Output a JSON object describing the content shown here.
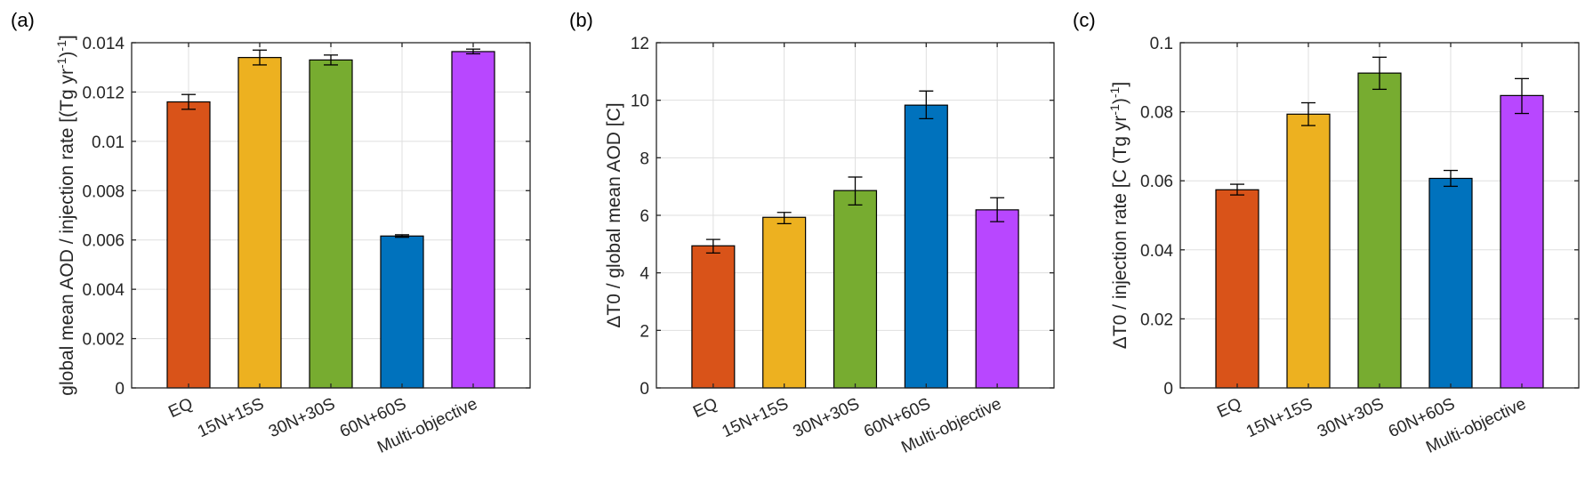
{
  "figure": {
    "panels": [
      "(a)",
      "(b)",
      "(c)"
    ]
  },
  "chart_data": [
    {
      "type": "bar",
      "panel_label": "(a)",
      "title": "",
      "xlabel": "",
      "ylabel_parts": [
        "global mean AOD / injection rate [(Tg yr",
        "-1",
        ")",
        "-1",
        "]"
      ],
      "categories": [
        "EQ",
        "15N+15S",
        "30N+30S",
        "60N+60S",
        "Multi-objective"
      ],
      "values": [
        0.0116,
        0.0134,
        0.0133,
        0.00616,
        0.01364
      ],
      "error_low": [
        0.0113,
        0.0131,
        0.0131,
        0.00611,
        0.01355
      ],
      "error_high": [
        0.0119,
        0.0137,
        0.0135,
        0.00621,
        0.01374
      ],
      "colors": [
        "#d95319",
        "#edb120",
        "#77ac30",
        "#0072bd",
        "#b847ff"
      ],
      "ylim": [
        0,
        0.014
      ],
      "yticks": [
        0,
        0.002,
        0.004,
        0.006,
        0.008,
        0.01,
        0.012,
        0.014
      ],
      "ytick_labels": [
        "0",
        "0.002",
        "0.004",
        "0.006",
        "0.008",
        "0.01",
        "0.012",
        "0.014"
      ],
      "grid": true,
      "legend": "none"
    },
    {
      "type": "bar",
      "panel_label": "(b)",
      "title": "",
      "xlabel": "",
      "ylabel_parts": [
        "ΔT0 / global mean AOD [C]"
      ],
      "categories": [
        "EQ",
        "15N+15S",
        "30N+30S",
        "60N+60S",
        "Multi-objective"
      ],
      "values": [
        4.94,
        5.93,
        6.86,
        9.83,
        6.19
      ],
      "error_low": [
        4.69,
        5.71,
        6.36,
        9.36,
        5.78
      ],
      "error_high": [
        5.16,
        6.1,
        7.33,
        10.32,
        6.61
      ],
      "colors": [
        "#d95319",
        "#edb120",
        "#77ac30",
        "#0072bd",
        "#b847ff"
      ],
      "ylim": [
        0,
        12
      ],
      "yticks": [
        0,
        2,
        4,
        6,
        8,
        10,
        12
      ],
      "ytick_labels": [
        "0",
        "2",
        "4",
        "6",
        "8",
        "10",
        "12"
      ],
      "grid": true,
      "legend": "none"
    },
    {
      "type": "bar",
      "panel_label": "(c)",
      "title": "",
      "xlabel": "",
      "ylabel_parts": [
        "ΔT0 / injection rate [C (Tg yr",
        "-1",
        ")",
        "-1",
        "]"
      ],
      "categories": [
        "EQ",
        "15N+15S",
        "30N+30S",
        "60N+60S",
        "Multi-objective"
      ],
      "values": [
        0.0574,
        0.0793,
        0.0912,
        0.0607,
        0.0847
      ],
      "error_low": [
        0.0559,
        0.076,
        0.0865,
        0.0584,
        0.0795
      ],
      "error_high": [
        0.059,
        0.0826,
        0.0958,
        0.063,
        0.0896
      ],
      "colors": [
        "#d95319",
        "#edb120",
        "#77ac30",
        "#0072bd",
        "#b847ff"
      ],
      "ylim": [
        0,
        0.1
      ],
      "yticks": [
        0,
        0.02,
        0.04,
        0.06,
        0.08,
        0.1
      ],
      "ytick_labels": [
        "0",
        "0.02",
        "0.04",
        "0.06",
        "0.08",
        "0.1"
      ],
      "grid": true,
      "legend": "none"
    }
  ]
}
